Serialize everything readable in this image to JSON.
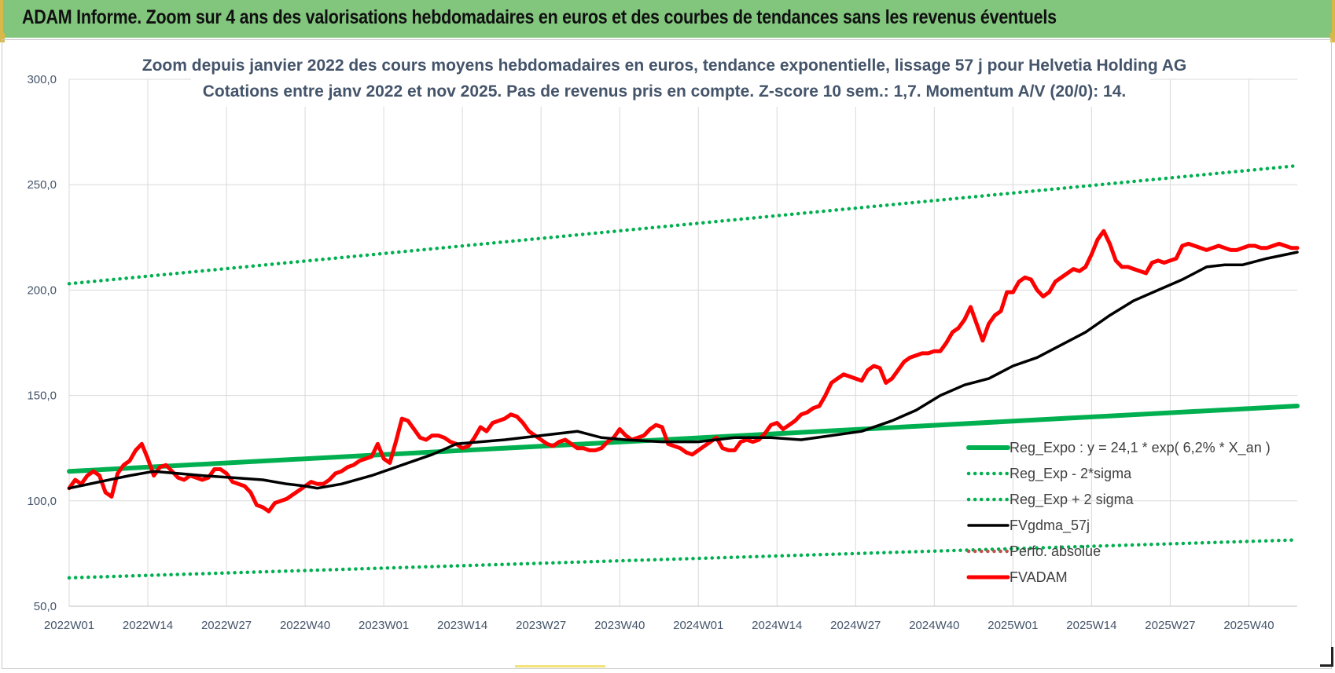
{
  "banner": {
    "title": "ADAM Informe. Zoom sur 4 ans des valorisations hebdomadaires en euros et des courbes de tendances sans les revenus éventuels"
  },
  "colors": {
    "banner_bg": "#82c67e",
    "reg_expo": "#00b050",
    "sigma_bands": "#00b050",
    "fvgdma": "#000000",
    "perfo": "#c0504d",
    "fvadam": "#ff0000",
    "grid": "#d9d9d9",
    "text": "#44546a"
  },
  "chart_data": {
    "type": "line",
    "title": "Zoom depuis janvier 2022 des cours moyens hebdomadaires en euros, tendance exponentielle, lissage 57 j pour Helvetia Holding AG",
    "subtitle": "Cotations entre janv 2022 et nov 2025. Pas de revenus pris en compte. Z-score 10 sem.: 1,7. Momentum A/V (20/0): 14.",
    "xlabel": "",
    "ylabel": "",
    "ylim": [
      50,
      300
    ],
    "yticks": [
      "50,0",
      "100,0",
      "150,0",
      "200,0",
      "250,0",
      "300,0"
    ],
    "ytick_values": [
      50,
      100,
      150,
      200,
      250,
      300
    ],
    "xlim": [
      0,
      203
    ],
    "xticks": [
      "2022W01",
      "2022W14",
      "2022W27",
      "2022W40",
      "2023W01",
      "2023W14",
      "2023W27",
      "2023W40",
      "2024W01",
      "2024W14",
      "2024W27",
      "2024W40",
      "2025W01",
      "2025W14",
      "2025W27",
      "2025W40"
    ],
    "xtick_values": [
      0,
      13,
      26,
      39,
      52,
      65,
      78,
      91,
      104,
      117,
      130,
      143,
      156,
      169,
      182,
      195
    ],
    "grid": true,
    "legend_position": "bottom-right",
    "series": [
      {
        "name": "Reg_Expo : y = 24,1 * exp( 6,2% *  X_an )",
        "style": "solid",
        "x": [
          0,
          203
        ],
        "values": [
          114,
          145
        ]
      },
      {
        "name": "Reg_Exp - 2*sigma",
        "style": "dotted",
        "x": [
          0,
          203
        ],
        "values": [
          63.5,
          81.5
        ]
      },
      {
        "name": "Reg_Exp + 2 sigma",
        "style": "dotted",
        "x": [
          0,
          203
        ],
        "values": [
          203,
          259
        ]
      },
      {
        "name": "FVgdma_57j",
        "style": "solid",
        "x": [
          0,
          5,
          10,
          14,
          18,
          22,
          27,
          32,
          36,
          39,
          41,
          45,
          50,
          55,
          60,
          64,
          68,
          72,
          78,
          84,
          88,
          92,
          98,
          104,
          110,
          116,
          121,
          126,
          131,
          136,
          140,
          144,
          148,
          152,
          156,
          160,
          164,
          168,
          172,
          176,
          180,
          184,
          188,
          191,
          194,
          198,
          203
        ],
        "values": [
          106,
          109,
          112,
          114,
          113,
          112,
          111,
          110,
          108,
          107,
          106,
          108,
          112,
          117,
          122,
          127,
          128,
          129,
          131,
          133,
          130,
          129,
          128,
          128,
          130,
          130,
          129,
          131,
          133,
          138,
          143,
          150,
          155,
          158,
          164,
          168,
          174,
          180,
          188,
          195,
          200,
          205,
          211,
          212,
          212,
          215,
          218
        ]
      },
      {
        "name": "Perfo. absolue",
        "style": "dotted",
        "x": [],
        "values": []
      },
      {
        "name": "FVADAM",
        "style": "solid",
        "x": [
          0,
          1,
          2,
          3,
          4,
          5,
          6,
          7,
          8,
          9,
          10,
          11,
          12,
          13,
          14,
          15,
          16,
          17,
          18,
          19,
          20,
          21,
          22,
          23,
          24,
          25,
          26,
          27,
          28,
          29,
          30,
          31,
          32,
          33,
          34,
          35,
          36,
          37,
          38,
          39,
          40,
          41,
          42,
          43,
          44,
          45,
          46,
          47,
          48,
          49,
          50,
          51,
          52,
          53,
          54,
          55,
          56,
          57,
          58,
          59,
          60,
          61,
          62,
          63,
          64,
          65,
          66,
          67,
          68,
          69,
          70,
          71,
          72,
          73,
          74,
          75,
          76,
          77,
          78,
          79,
          80,
          81,
          82,
          83,
          84,
          85,
          86,
          87,
          88,
          89,
          90,
          91,
          92,
          93,
          94,
          95,
          96,
          97,
          98,
          99,
          100,
          101,
          102,
          103,
          104,
          105,
          106,
          107,
          108,
          109,
          110,
          111,
          112,
          113,
          114,
          115,
          116,
          117,
          118,
          119,
          120,
          121,
          122,
          123,
          124,
          125,
          126,
          127,
          128,
          129,
          130,
          131,
          132,
          133,
          134,
          135,
          136,
          137,
          138,
          139,
          140,
          141,
          142,
          143,
          144,
          145,
          146,
          147,
          148,
          149,
          150,
          151,
          152,
          153,
          154,
          155,
          156,
          157,
          158,
          159,
          160,
          161,
          162,
          163,
          164,
          165,
          166,
          167,
          168,
          169,
          170,
          171,
          172,
          173,
          174,
          175,
          176,
          177,
          178,
          179,
          180,
          181,
          182,
          183,
          184,
          185,
          186,
          187,
          188,
          189,
          190,
          191,
          192,
          193,
          194,
          195,
          196,
          197,
          198,
          199,
          200,
          201,
          202,
          203
        ],
        "values": [
          106,
          110,
          108,
          112,
          114,
          112,
          104,
          102,
          113,
          117,
          119,
          124,
          127,
          120,
          112,
          116,
          117,
          114,
          111,
          110,
          112,
          111,
          110,
          111,
          115,
          115,
          113,
          109,
          108,
          107,
          104,
          98,
          97,
          95,
          99,
          100,
          101,
          103,
          105,
          107,
          109,
          108,
          108,
          110,
          113,
          114,
          116,
          117,
          119,
          120,
          121,
          127,
          120,
          118,
          128,
          139,
          138,
          134,
          130,
          129,
          131,
          131,
          130,
          128,
          127,
          125,
          126,
          130,
          135,
          133,
          137,
          138,
          139,
          141,
          140,
          137,
          133,
          131,
          129,
          127,
          126,
          128,
          129,
          127,
          125,
          125,
          124,
          124,
          125,
          128,
          130,
          134,
          131,
          129,
          130,
          131,
          134,
          136,
          135,
          127,
          126,
          125,
          123,
          122,
          124,
          126,
          128,
          130,
          125,
          124,
          124,
          128,
          129,
          128,
          129,
          132,
          136,
          137,
          134,
          136,
          138,
          141,
          142,
          144,
          145,
          150,
          156,
          158,
          160,
          159,
          158,
          157,
          162,
          164,
          163,
          156,
          158,
          162,
          166,
          168,
          169,
          170,
          170,
          171,
          171,
          175,
          180,
          182,
          186,
          192,
          184,
          176,
          184,
          188,
          190,
          199,
          199,
          204,
          206,
          205,
          200,
          197,
          199,
          204,
          206,
          208,
          210,
          209,
          211,
          217,
          224,
          228,
          222,
          214,
          211,
          211,
          210,
          209,
          208,
          213,
          214,
          213,
          214,
          215,
          221,
          222,
          221,
          220,
          219,
          220,
          221,
          220,
          219,
          219,
          220,
          221,
          221,
          220,
          220,
          221,
          222,
          221,
          220,
          220
        ]
      }
    ]
  }
}
